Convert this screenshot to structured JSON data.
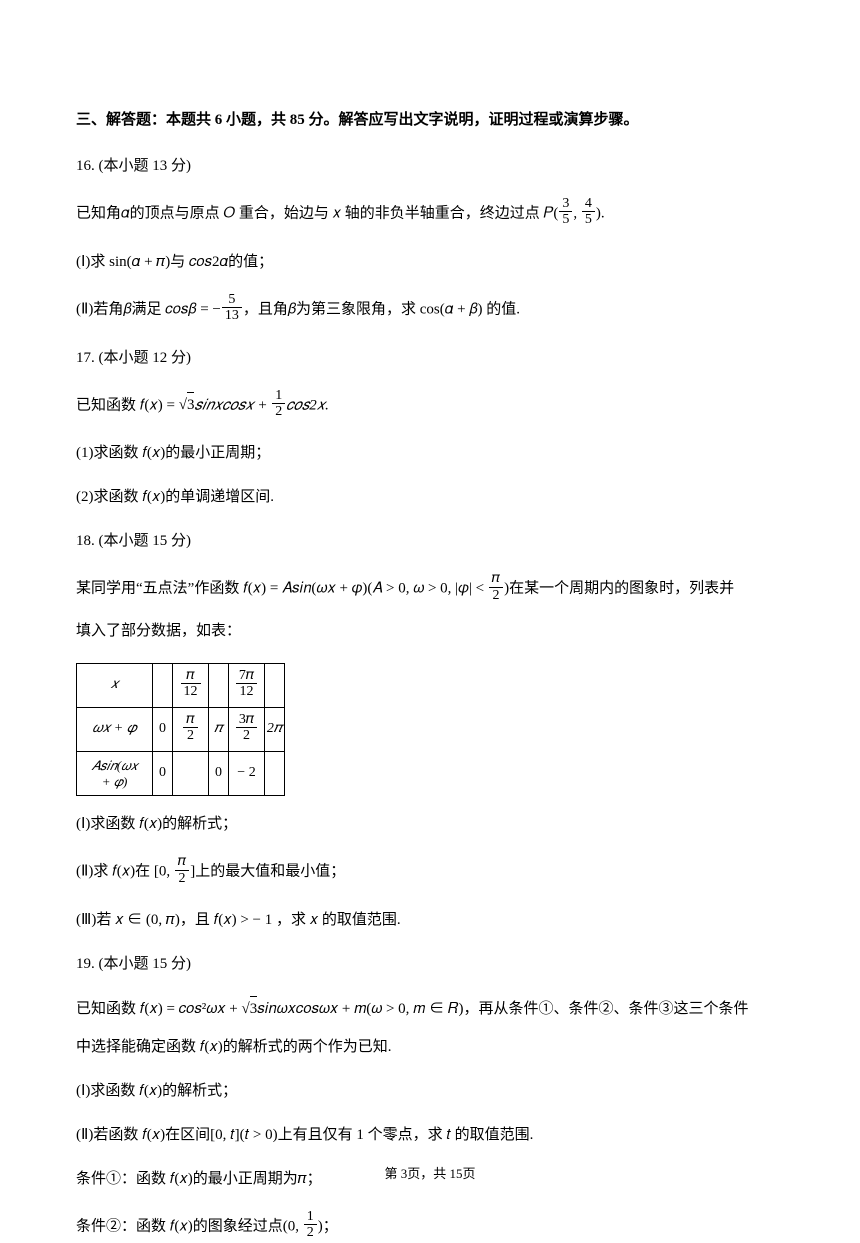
{
  "section_heading": "三、解答题：本题共 6 小题，共 85 分。解答应写出文字说明，证明过程或演算步骤。",
  "q16": {
    "num_points": "16. (本小题 13  分)",
    "stem": "已知角𝛼的顶点与原点 𝑂 重合，始边与 𝑥 轴的非负半轴重合，终边过点 𝑃(",
    "stem_after": ").",
    "p_x_num": "3",
    "p_x_den": "5",
    "p_y_num": "4",
    "p_y_den": "5",
    "part1_pre": "(Ⅰ)求 sin(𝛼 + 𝜋)与 𝑐𝑜𝑠2𝛼的值；",
    "part2_pre": "(Ⅱ)若角𝛽满足 𝑐𝑜𝑠𝛽 = −",
    "beta_num": "5",
    "beta_den": "13",
    "part2_after": "，且角𝛽为第三象限角，求 cos(𝛼 + 𝛽) 的值."
  },
  "q17": {
    "num_points": "17. (本小题 12  分)",
    "stem_pre": "已知函数 𝑓(𝑥) = ",
    "sqrt_val": "3",
    "stem_mid": "𝑠𝑖𝑛𝑥𝑐𝑜𝑠𝑥 + ",
    "half_num": "1",
    "half_den": "2",
    "stem_after": "𝑐𝑜𝑠2𝑥.",
    "part1": "(1)求函数 𝑓(𝑥)的最小正周期；",
    "part2": "(2)求函数 𝑓(𝑥)的单调递增区间."
  },
  "q18": {
    "num_points": "18. (本小题 15  分)",
    "stem_pre": "某同学用“五点法”作函数 𝑓(𝑥) = 𝐴𝑠𝑖𝑛(𝜔𝑥 + 𝜑)(𝐴 > 0, 𝜔 > 0, |𝜑| < ",
    "phi_num": "𝜋",
    "phi_den": "2",
    "stem_after": ")在某一个周期内的图象时，列表并",
    "stem_line2": "填入了部分数据，如表：",
    "table": {
      "row1_label": "𝑥",
      "r1c3_num": "𝜋",
      "r1c3_den": "12",
      "r1c5_num": "7𝜋",
      "r1c5_den": "12",
      "row2_label": "𝜔𝑥 + 𝜑",
      "r2c2": "0",
      "r2c3_num": "𝜋",
      "r2c3_den": "2",
      "r2c4": "𝜋",
      "r2c5_num": "3𝜋",
      "r2c5_den": "2",
      "r2c6": "2𝜋",
      "row3_label_l1": "𝐴𝑠𝑖𝑛(𝜔𝑥",
      "row3_label_l2": "+ 𝜑)",
      "r3c2": "0",
      "r3c4": "0",
      "r3c5": "− 2"
    },
    "part1": "(Ⅰ)求函数 𝑓(𝑥)的解析式；",
    "part2_pre": "(Ⅱ)求 𝑓(𝑥)在 [0, ",
    "p2_num": "𝜋",
    "p2_den": "2",
    "part2_after": "]上的最大值和最小值；",
    "part3": "(Ⅲ)若 𝑥 ∈ (0, 𝜋)，且 𝑓(𝑥) > − 1 ，求 𝑥 的取值范围."
  },
  "q19": {
    "num_points": "19. (本小题 15  分)",
    "stem_pre": "已知函数 𝑓(𝑥) = 𝑐𝑜𝑠²𝜔𝑥 + ",
    "sqrt_val": "3",
    "stem_after": "𝑠𝑖𝑛𝜔𝑥𝑐𝑜𝑠𝜔𝑥 + 𝑚(𝜔 > 0, 𝑚 ∈ 𝑅)，再从条件①、条件②、条件③这三个条件",
    "stem_line2": "中选择能确定函数 𝑓(𝑥)的解析式的两个作为已知.",
    "part1": "(Ⅰ)求函数 𝑓(𝑥)的解析式；",
    "part2": "(Ⅱ)若函数 𝑓(𝑥)在区间[0, 𝑡](𝑡 > 0)上有且仅有 1 个零点，求 𝑡 的取值范围.",
    "cond1": "条件①：函数 𝑓(𝑥)的最小正周期为𝜋；",
    "cond2_pre": "条件②：函数 𝑓(𝑥)的图象经过点(0, ",
    "c2_num": "1",
    "c2_den": "2",
    "cond2_after": ")；"
  },
  "footer": "第 3页，共 15页"
}
